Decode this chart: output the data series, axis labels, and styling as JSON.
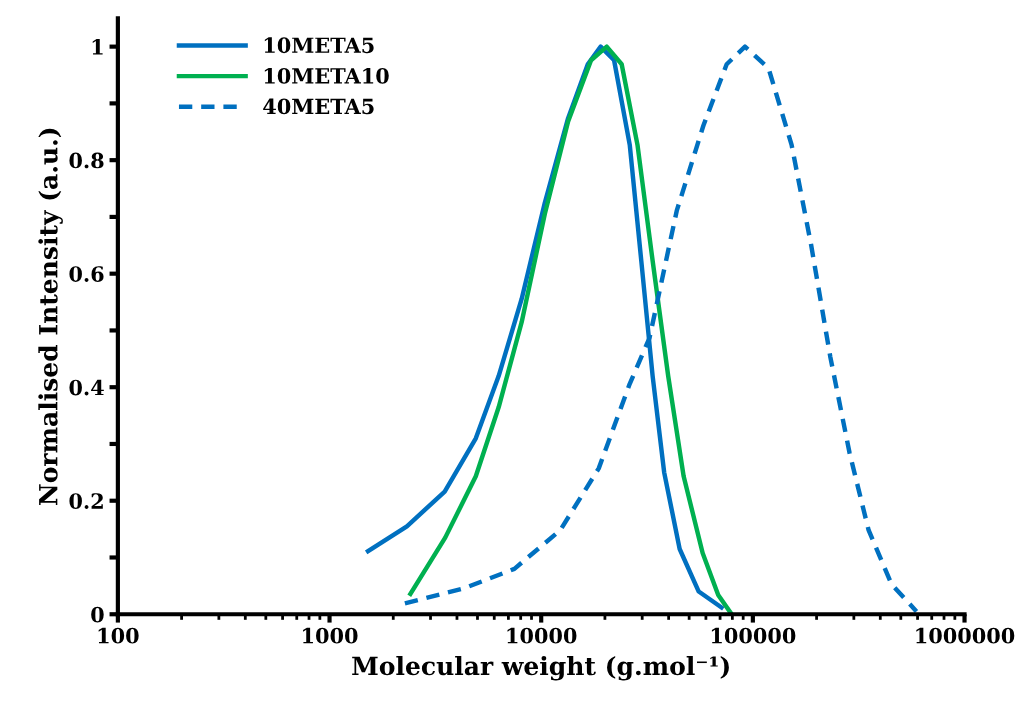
{
  "chart_data": {
    "type": "line",
    "xlabel": "Molecular weight (g.mol⁻¹)",
    "ylabel": "Normalised Intensity (a.u.)",
    "log": "x",
    "xlim": [
      100,
      1000000
    ],
    "xticks": [
      100,
      1000,
      10000,
      100000,
      1000000
    ],
    "ylim": [
      0,
      1.05
    ],
    "yticks": [
      0,
      {
        "value": 0.1,
        "label": null
      },
      0.2,
      {
        "value": 0.3,
        "label": null
      },
      0.4,
      {
        "value": 0.5,
        "label": null
      },
      0.6,
      {
        "value": 0.7,
        "label": null
      },
      0.8,
      {
        "value": 0.9,
        "label": null
      },
      1
    ],
    "grid": false,
    "legend": "top left",
    "series": [
      {
        "name": "10META5",
        "color": "#0070c0",
        "line_style": "solid",
        "x": [
          1520,
          2320,
          3500,
          4910,
          6300,
          8090,
          10400,
          13400,
          16600,
          19100,
          22100,
          26200,
          29700,
          33600,
          38100,
          45100,
          55500,
          71100
        ],
        "values": [
          0.111,
          0.155,
          0.216,
          0.31,
          0.42,
          0.556,
          0.725,
          0.874,
          0.969,
          1.0,
          0.976,
          0.827,
          0.623,
          0.42,
          0.25,
          0.115,
          0.04,
          0.012
        ]
      },
      {
        "name": "10META10",
        "color": "#00b050",
        "line_style": "solid",
        "x": [
          2410,
          3520,
          4910,
          6300,
          8090,
          10400,
          13400,
          17200,
          20400,
          24000,
          28500,
          33600,
          39800,
          47100,
          57900,
          68600,
          79400
        ],
        "values": [
          0.036,
          0.135,
          0.243,
          0.365,
          0.515,
          0.705,
          0.868,
          0.976,
          1.0,
          0.969,
          0.827,
          0.623,
          0.42,
          0.243,
          0.108,
          0.034,
          0.0
        ]
      },
      {
        "name": "40META5",
        "color": "#0070c0",
        "line_style": "dashed",
        "x": [
          2270,
          4340,
          7470,
          12300,
          18700,
          26200,
          32500,
          43700,
          58400,
          75200,
          91800,
          118600,
          152400,
          188400,
          232300,
          286400,
          352300,
          451900,
          592900
        ],
        "values": [
          0.019,
          0.046,
          0.08,
          0.148,
          0.257,
          0.406,
          0.487,
          0.711,
          0.861,
          0.969,
          1.0,
          0.962,
          0.827,
          0.651,
          0.453,
          0.284,
          0.148,
          0.053,
          0.005
        ]
      }
    ]
  }
}
